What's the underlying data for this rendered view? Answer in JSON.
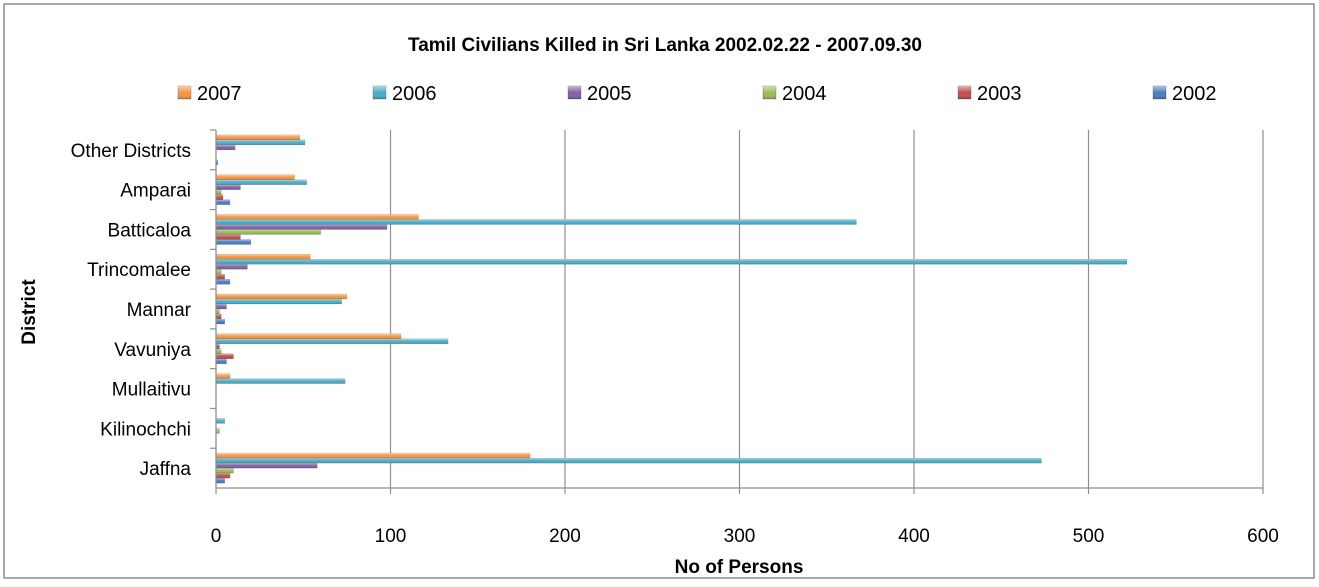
{
  "chart_data": {
    "type": "bar",
    "orientation": "horizontal",
    "title": "Tamil Civilians Killed in Sri Lanka 2002.02.22 - 2007.09.30",
    "xlabel": "No of Persons",
    "ylabel": "District",
    "xlim": [
      0,
      600
    ],
    "xticks": [
      0,
      100,
      200,
      300,
      400,
      500,
      600
    ],
    "grid": true,
    "legend_position": "top",
    "categories": [
      "Jaffna",
      "Kilinochchi",
      "Mullaitivu",
      "Vavuniya",
      "Mannar",
      "Trincomalee",
      "Batticaloa",
      "Amparai",
      "Other Districts"
    ],
    "series": [
      {
        "name": "2002",
        "color": "#4a7ec1",
        "values": [
          5,
          0,
          0,
          6,
          5,
          8,
          20,
          8,
          1
        ]
      },
      {
        "name": "2003",
        "color": "#c0504d",
        "values": [
          8,
          0,
          0,
          10,
          3,
          5,
          14,
          4,
          0
        ]
      },
      {
        "name": "2004",
        "color": "#9bbb59",
        "values": [
          10,
          2,
          0,
          3,
          2,
          3,
          60,
          3,
          0
        ]
      },
      {
        "name": "2005",
        "color": "#8064a2",
        "values": [
          58,
          0,
          0,
          2,
          6,
          18,
          98,
          14,
          11
        ]
      },
      {
        "name": "2006",
        "color": "#4bacc6",
        "values": [
          473,
          5,
          74,
          133,
          72,
          522,
          367,
          52,
          51
        ]
      },
      {
        "name": "2007",
        "color": "#f79646",
        "values": [
          180,
          0,
          8,
          106,
          75,
          54,
          116,
          45,
          48
        ]
      }
    ],
    "legend_order": [
      "2007",
      "2006",
      "2005",
      "2004",
      "2003",
      "2002"
    ]
  }
}
